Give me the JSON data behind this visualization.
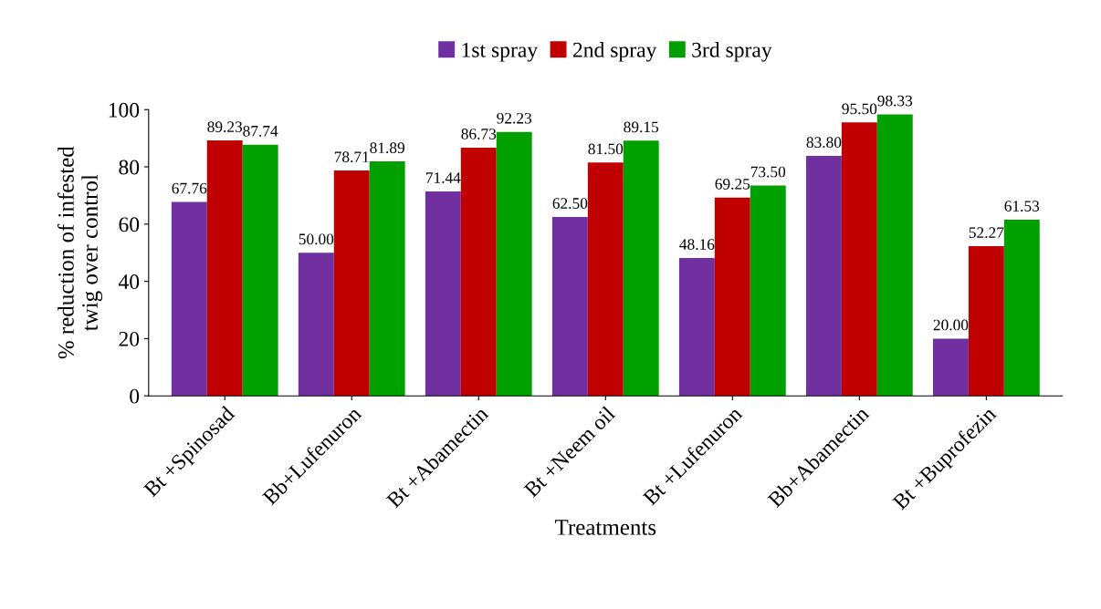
{
  "chart_data": {
    "type": "bar",
    "categories": [
      "Bt +Spinosad",
      "Bb+Lufenuron",
      "Bt +Abamectin",
      "Bt +Neem oil",
      "Bt +Lufenuron",
      "Bb+Abamectin",
      "Bt +Buprofezin"
    ],
    "series": [
      {
        "name": "1st spray",
        "color": "#7030a0",
        "values": [
          67.76,
          50.0,
          71.44,
          62.5,
          48.16,
          83.8,
          20.0
        ],
        "value_labels": [
          "67.76",
          "50.00",
          "71.44",
          "62.50",
          "48.16",
          "83.80",
          "20.00"
        ]
      },
      {
        "name": "2nd spray",
        "color": "#c00000",
        "values": [
          89.23,
          78.71,
          86.73,
          81.5,
          69.25,
          95.5,
          52.27
        ],
        "value_labels": [
          "89.23",
          "78.71",
          "86.73",
          "81.50",
          "69.25",
          "95.50",
          "52.27"
        ]
      },
      {
        "name": "3rd spray",
        "color": "#00a000",
        "values": [
          87.74,
          81.89,
          92.23,
          89.15,
          73.5,
          98.33,
          61.53
        ],
        "value_labels": [
          "87.74",
          "81.89",
          "92.23",
          "89.15",
          "73.50",
          "98.33",
          "61.53"
        ]
      }
    ],
    "xlabel": "Treatments",
    "ylabel": "% reduction of infested\ntwig over control",
    "ylim": [
      0,
      100
    ],
    "yticks": [
      0,
      20,
      40,
      60,
      80,
      100
    ],
    "legend": "top",
    "grid": false
  }
}
